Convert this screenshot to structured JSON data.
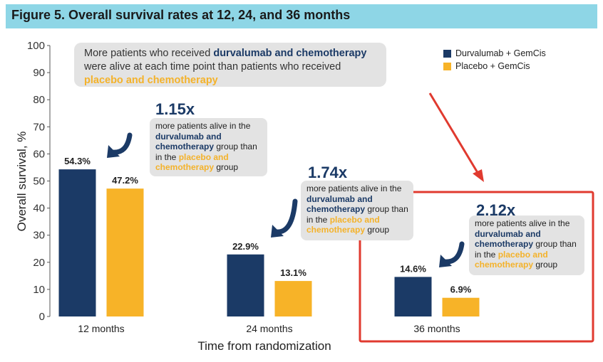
{
  "header": {
    "title": "Figure 5. Overall survival rates at 12, 24, and 36 months"
  },
  "intro": {
    "part1": "More patients who received ",
    "highlight_durva": "durvalumab and chemotherapy",
    "part2": " were alive at each time point than patients who received ",
    "highlight_placebo": "placebo and chemotherapy"
  },
  "legend": [
    {
      "label": "Durvalumab + GemCis",
      "color": "#1b3a66"
    },
    {
      "label": "Placebo + GemCis",
      "color": "#f7b328"
    }
  ],
  "callouts": [
    {
      "multiplier": "1.15x",
      "t1": "more patients alive in the ",
      "t2": "durvalumab and chemotherapy",
      "t3": " group than in the ",
      "t4": "placebo and chemotherapy",
      "t5": " group"
    },
    {
      "multiplier": "1.74x",
      "t1": "more patients alive in the ",
      "t2": "durvalumab and chemotherapy",
      "t3": " group than in the ",
      "t4": "placebo and chemotherapy",
      "t5": " group"
    },
    {
      "multiplier": "2.12x",
      "t1": "more patients alive in the ",
      "t2": "durvalumab and chemotherapy",
      "t3": " group than in the ",
      "t4": "placebo and chemotherapy",
      "t5": " group"
    }
  ],
  "chart_data": {
    "type": "bar",
    "categories": [
      "12 months",
      "24 months",
      "36 months"
    ],
    "series": [
      {
        "name": "Durvalumab + GemCis",
        "values": [
          54.3,
          22.9,
          14.6
        ],
        "labels": [
          "54.3%",
          "22.9%",
          "14.6%"
        ],
        "color": "#1b3a66"
      },
      {
        "name": "Placebo + GemCis",
        "values": [
          47.2,
          13.1,
          6.9
        ],
        "labels": [
          "47.2%",
          "13.1%",
          "6.9%"
        ],
        "color": "#f7b328"
      }
    ],
    "xlabel": "Time from randomization",
    "ylabel": "Overall survival, %",
    "ylim": [
      0,
      100
    ],
    "yticks": [
      "0",
      "10",
      "20",
      "30",
      "40",
      "50",
      "60",
      "70",
      "80",
      "90",
      "100"
    ],
    "grid": false,
    "legend_position": "top-right"
  },
  "highlight": {
    "color": "#e03a2f"
  }
}
